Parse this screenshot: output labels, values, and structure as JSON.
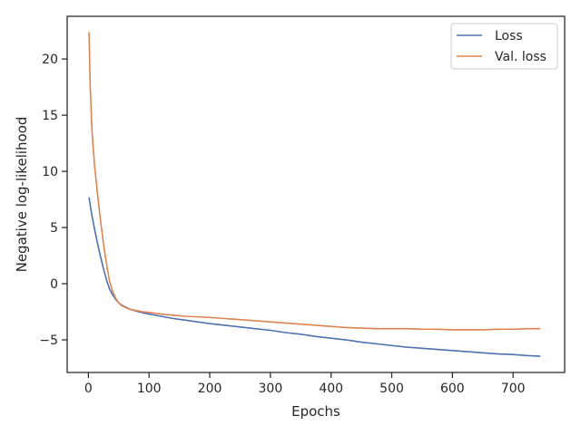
{
  "chart_data": {
    "type": "line",
    "title": "",
    "xlabel": "Epochs",
    "ylabel": "Negative log-likelihood",
    "xlim": [
      -35,
      785
    ],
    "ylim": [
      -7.9,
      23.8
    ],
    "xticks": [
      0,
      100,
      200,
      300,
      400,
      500,
      600,
      700
    ],
    "yticks": [
      -5,
      0,
      5,
      10,
      15,
      20
    ],
    "grid": false,
    "legend_position": "upper right",
    "series": [
      {
        "name": "Loss",
        "color": "#4c72b0",
        "x": [
          1,
          5,
          10,
          15,
          20,
          25,
          30,
          35,
          40,
          45,
          50,
          55,
          60,
          70,
          80,
          90,
          100,
          120,
          140,
          160,
          180,
          200,
          225,
          250,
          275,
          300,
          325,
          350,
          375,
          400,
          425,
          450,
          475,
          500,
          525,
          550,
          575,
          600,
          625,
          650,
          675,
          700,
          725,
          745
        ],
        "y": [
          7.7,
          6.3,
          4.9,
          3.6,
          2.4,
          1.3,
          0.3,
          -0.5,
          -1.0,
          -1.4,
          -1.7,
          -1.9,
          -2.05,
          -2.3,
          -2.45,
          -2.6,
          -2.7,
          -2.9,
          -3.1,
          -3.25,
          -3.4,
          -3.55,
          -3.7,
          -3.85,
          -4.0,
          -4.15,
          -4.35,
          -4.5,
          -4.7,
          -4.85,
          -5.0,
          -5.2,
          -5.35,
          -5.5,
          -5.65,
          -5.75,
          -5.85,
          -5.95,
          -6.05,
          -6.15,
          -6.25,
          -6.3,
          -6.4,
          -6.45
        ]
      },
      {
        "name": "Val. loss",
        "color": "#dd8452",
        "x": [
          1,
          3,
          6,
          10,
          15,
          20,
          25,
          30,
          35,
          40,
          45,
          50,
          55,
          60,
          70,
          80,
          90,
          100,
          120,
          140,
          160,
          180,
          200,
          225,
          250,
          275,
          300,
          325,
          350,
          375,
          400,
          425,
          450,
          475,
          500,
          525,
          550,
          575,
          600,
          625,
          650,
          675,
          700,
          725,
          745
        ],
        "y": [
          22.4,
          17.5,
          13.5,
          10.6,
          8.0,
          5.6,
          3.5,
          1.7,
          0.2,
          -0.7,
          -1.3,
          -1.7,
          -1.95,
          -2.1,
          -2.3,
          -2.4,
          -2.5,
          -2.55,
          -2.7,
          -2.8,
          -2.9,
          -2.95,
          -3.0,
          -3.1,
          -3.2,
          -3.3,
          -3.4,
          -3.5,
          -3.6,
          -3.7,
          -3.8,
          -3.9,
          -3.95,
          -4.0,
          -4.0,
          -4.0,
          -4.05,
          -4.05,
          -4.1,
          -4.1,
          -4.1,
          -4.05,
          -4.05,
          -4.0,
          -4.0
        ]
      }
    ]
  }
}
